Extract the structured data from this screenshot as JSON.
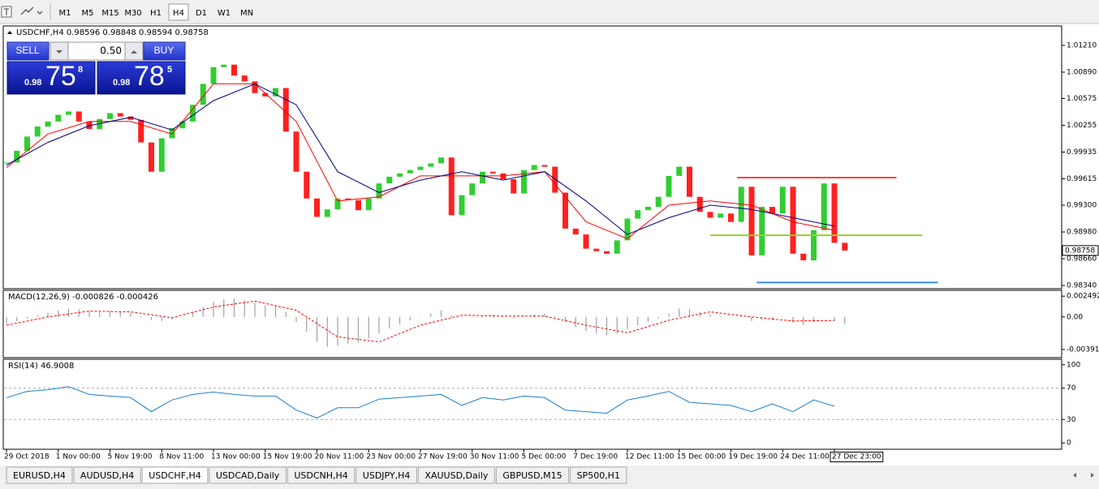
{
  "toolbar": {
    "timeframes": [
      "M1",
      "M5",
      "M15",
      "M30",
      "H1",
      "H4",
      "D1",
      "W1",
      "MN"
    ],
    "active": "H4"
  },
  "trade_panel": {
    "sell": "SELL",
    "buy": "BUY",
    "lot": "0.50",
    "sell_price": {
      "head": "0.98",
      "pips": "75",
      "tail": "8"
    },
    "buy_price": {
      "head": "0.98",
      "pips": "78",
      "tail": "5"
    }
  },
  "chart_data": [
    {
      "type": "candlestick",
      "title": "USDCHF,H4",
      "header_values": [
        0.98596,
        0.98848,
        0.98594,
        0.98758
      ],
      "up_color": "#32cd32",
      "down_color": "#ff2020",
      "x": [
        0,
        1,
        2,
        3,
        4,
        5,
        6,
        7,
        8,
        9,
        10,
        11,
        12,
        13,
        14,
        15,
        16,
        17,
        18,
        19,
        20,
        21,
        22,
        23,
        24,
        25,
        26,
        27,
        28,
        29,
        30,
        31,
        32,
        33,
        34,
        35,
        36,
        37,
        38,
        39,
        40,
        41,
        42,
        43,
        44,
        45,
        46,
        47,
        48,
        49,
        50,
        51,
        52,
        53,
        54,
        55,
        56,
        57,
        58,
        59,
        60,
        61,
        62,
        63,
        64,
        65,
        66,
        67,
        68,
        69,
        70,
        71,
        72,
        73,
        74,
        75,
        76,
        77,
        78,
        79,
        80,
        81
      ],
      "values": [
        0.9981,
        0.9995,
        1.0012,
        1.0024,
        1.003,
        1.0038,
        1.0042,
        1.003,
        1.0021,
        1.0033,
        1.004,
        1.0036,
        1.0032,
        1.0005,
        0.997,
        1.001,
        1.0022,
        1.003,
        1.005,
        1.0075,
        1.0095,
        1.0098,
        1.0085,
        1.0078,
        1.0064,
        1.006,
        1.007,
        1.0018,
        0.997,
        0.9938,
        0.9916,
        0.9925,
        0.9938,
        0.9936,
        0.9924,
        0.9938,
        0.9956,
        0.9964,
        0.9968,
        0.9972,
        0.9976,
        0.998,
        0.9987,
        0.9918,
        0.9942,
        0.9956,
        0.997,
        0.9968,
        0.9961,
        0.9944,
        0.9972,
        0.9978,
        0.9976,
        0.9945,
        0.9902,
        0.9895,
        0.9878,
        0.9875,
        0.9872,
        0.9888,
        0.9914,
        0.9924,
        0.9928,
        0.994,
        0.9965,
        0.9976,
        0.994,
        0.9922,
        0.9915,
        0.992,
        0.991,
        0.9952,
        0.987,
        0.9928,
        0.992,
        0.9952,
        0.9872,
        0.9864,
        0.99,
        0.9956,
        0.9885,
        0.98758
      ],
      "lines": [
        {
          "color": "#ff0000",
          "x": [
            0,
            4,
            8,
            12,
            16,
            20,
            24,
            28,
            32,
            36,
            40,
            44,
            48,
            52,
            56,
            60,
            64,
            68,
            72,
            76,
            80
          ],
          "values": [
            0.9975,
            1.0015,
            1.003,
            1.003,
            1.0015,
            1.0075,
            1.0075,
            1.003,
            0.9935,
            0.994,
            0.9965,
            0.9965,
            0.9965,
            0.997,
            0.991,
            0.989,
            0.993,
            0.9935,
            0.993,
            0.991,
            0.99
          ]
        },
        {
          "color": "#000080",
          "x": [
            0,
            4,
            8,
            12,
            16,
            20,
            24,
            28,
            32,
            36,
            40,
            44,
            48,
            52,
            56,
            60,
            64,
            68,
            72,
            76,
            80
          ],
          "values": [
            0.9978,
            1.0005,
            1.0025,
            1.0035,
            1.002,
            1.0055,
            1.0075,
            1.005,
            0.997,
            0.9945,
            0.996,
            0.997,
            0.996,
            0.997,
            0.9935,
            0.9895,
            0.9915,
            0.993,
            0.9925,
            0.9915,
            0.9905
          ]
        }
      ],
      "levels": [
        {
          "value": 0.9963,
          "color": "#ff4040",
          "x": [
            70.6,
            86
          ]
        },
        {
          "value": 0.9894,
          "color": "#9acd32",
          "x": [
            68,
            88.5
          ]
        },
        {
          "value": 0.98375,
          "color": "#3a8fd8",
          "x": [
            72.5,
            90
          ]
        }
      ],
      "ylim": [
        0.98321,
        1.01423
      ],
      "yticks": [
        {
          "value": 1.0121,
          "label": "1.01210"
        },
        {
          "value": 1.0089,
          "label": "1.00890"
        },
        {
          "value": 1.00575,
          "label": "1.00575"
        },
        {
          "value": 1.00255,
          "label": "1.00255"
        },
        {
          "value": 0.99935,
          "label": "0.99935"
        },
        {
          "value": 0.99615,
          "label": "0.99615"
        },
        {
          "value": 0.993,
          "label": "0.99300"
        },
        {
          "value": 0.9898,
          "label": "0.98980"
        },
        {
          "value": 0.9866,
          "label": "0.98660"
        },
        {
          "value": 0.9834,
          "label": "0.98340"
        }
      ]
    },
    {
      "type": "macd",
      "title": "MACD(12,26,9)",
      "header_values": [
        -0.000826,
        -0.000426
      ],
      "color": "#a0a0a0",
      "signal_color": "#ff0000",
      "values": [
        -0.0008,
        -0.0005,
        -0.0002,
        0.0002,
        0.0005,
        0.0008,
        0.001,
        0.0009,
        0.0007,
        0.0006,
        0.0007,
        0.0006,
        0.0005,
        0.0001,
        -0.0004,
        -0.0005,
        -0.0003,
        0,
        0.0005,
        0.0012,
        0.0018,
        0.0021,
        0.0022,
        0.002,
        0.0017,
        0.0014,
        0.0013,
        0.0006,
        -0.0006,
        -0.0018,
        -0.003,
        -0.0036,
        -0.0035,
        -0.0032,
        -0.0031,
        -0.0026,
        -0.002,
        -0.0014,
        -0.0009,
        -0.0004,
        0,
        0.0004,
        0.0008,
        0.0002,
        -0.0001,
        0,
        0.0001,
        0.0002,
        0.0001,
        -0.0002,
        0.0001,
        0.0003,
        0.0004,
        0.0001,
        -0.0006,
        -0.0012,
        -0.0017,
        -0.002,
        -0.0022,
        -0.002,
        -0.0015,
        -0.001,
        -0.0006,
        -0.0002,
        0.0004,
        0.001,
        0.0009,
        0.0006,
        0.0003,
        0.0001,
        0,
        0.0002,
        -0.0005,
        -0.0003,
        -0.0004,
        0,
        -0.0007,
        -0.001,
        -0.0006,
        0,
        -0.0005,
        -0.00083
      ],
      "signal": {
        "x": [
          0,
          4,
          8,
          12,
          16,
          20,
          24,
          28,
          32,
          36,
          40,
          44,
          48,
          52,
          56,
          60,
          64,
          68,
          72,
          76,
          80
        ],
        "values": [
          -0.001,
          0,
          0.0007,
          0.0006,
          -0.0001,
          0.0012,
          0.0019,
          0.0008,
          -0.0024,
          -0.003,
          -0.001,
          0.0002,
          0.0001,
          0.0001,
          -0.001,
          -0.0019,
          -0.0004,
          0.0006,
          0,
          -0.0005,
          -0.00043
        ]
      },
      "ylim": [
        -0.0047,
        0.003
      ],
      "yticks": [
        {
          "value": 0.002492,
          "label": "0.002492"
        },
        {
          "value": 0,
          "label": "0.00"
        },
        {
          "value": -0.003913,
          "label": "-0.003913"
        }
      ]
    },
    {
      "type": "rsi",
      "title": "RSI(14)",
      "header_values": [
        46.9008
      ],
      "color": "#1e7fd0",
      "x": [
        0,
        2,
        4,
        6,
        8,
        10,
        12,
        14,
        16,
        18,
        20,
        22,
        24,
        26,
        28,
        30,
        32,
        34,
        36,
        38,
        40,
        42,
        44,
        46,
        48,
        50,
        52,
        54,
        56,
        58,
        60,
        62,
        64,
        66,
        68,
        70,
        72,
        74,
        76,
        78,
        80
      ],
      "values": [
        58,
        66,
        68,
        72,
        62,
        60,
        58,
        40,
        55,
        62,
        65,
        62,
        60,
        60,
        42,
        32,
        45,
        45,
        56,
        58,
        60,
        62,
        48,
        58,
        55,
        60,
        58,
        42,
        40,
        38,
        55,
        60,
        66,
        52,
        50,
        48,
        40,
        50,
        40,
        55,
        46.9
      ],
      "levels": [
        30,
        70
      ],
      "ylim": [
        -7,
        107
      ],
      "yticks": [
        100,
        70,
        30,
        0
      ],
      "xticks": [
        {
          "value": 0,
          "label": "29 Oct 2018"
        },
        {
          "value": 5,
          "label": "1 Nov 00:00"
        },
        {
          "value": 10,
          "label": "5 Nov 19:00"
        },
        {
          "value": 15,
          "label": "8 Nov 11:00"
        },
        {
          "value": 20,
          "label": "13 Nov 00:00"
        },
        {
          "value": 25,
          "label": "15 Nov 19:00"
        },
        {
          "value": 30,
          "label": "20 Nov 11:00"
        },
        {
          "value": 35,
          "label": "23 Nov 00:00"
        },
        {
          "value": 40,
          "label": "27 Nov 19:00"
        },
        {
          "value": 45,
          "label": "30 Nov 11:00"
        },
        {
          "value": 50,
          "label": "5 Dec 00:00"
        },
        {
          "value": 55,
          "label": "7 Dec 19:00"
        },
        {
          "value": 60,
          "label": "12 Dec 11:00"
        },
        {
          "value": 65,
          "label": "15 Dec 00:00"
        },
        {
          "value": 70,
          "label": "19 Dec 19:00"
        },
        {
          "value": 75,
          "label": "24 Dec 11:00"
        },
        {
          "value": 80,
          "label": "27 Dec 23:00"
        }
      ]
    }
  ],
  "tabs": {
    "items": [
      "EURUSD,H4",
      "AUDUSD,H4",
      "USDCHF,H4",
      "USDCAD,Daily",
      "USDCNH,H4",
      "USDJPY,H4",
      "XAUUSD,Daily",
      "GBPUSD,M15",
      "SP500,H1"
    ],
    "active": "USDCHF,H4"
  }
}
